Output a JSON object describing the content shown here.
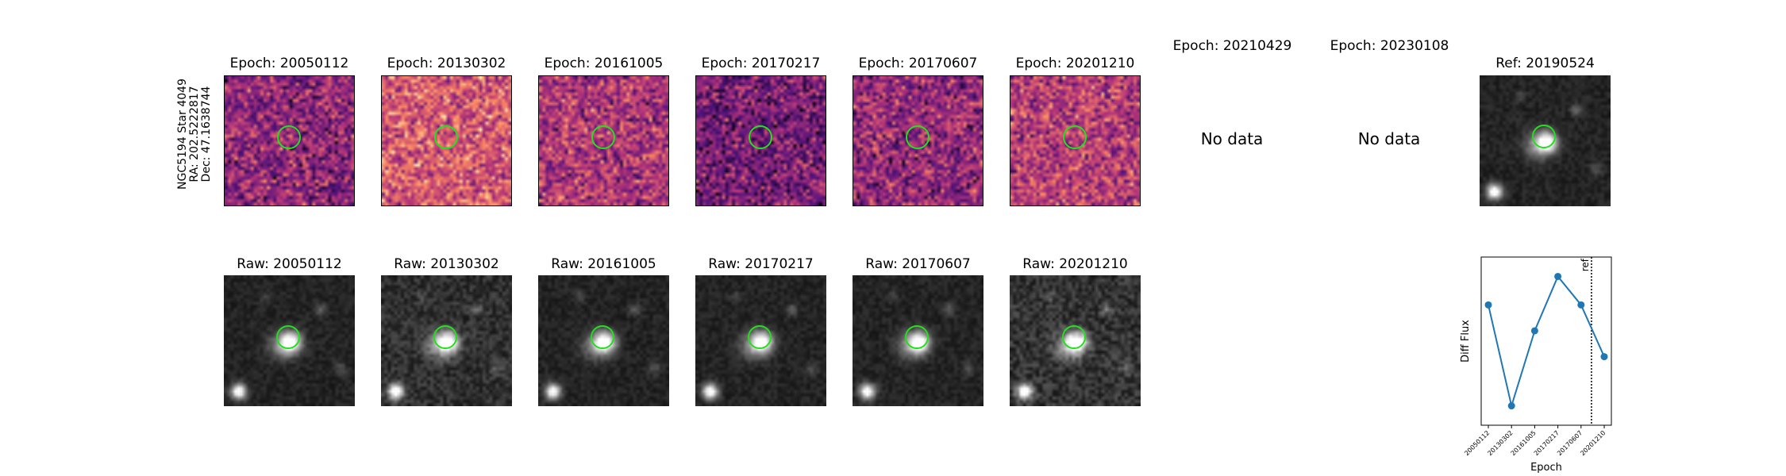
{
  "star": {
    "line1": "NGC5194 Star 4049",
    "line2": "RA: 202.5222817",
    "line3": "Dec: 47.1638744"
  },
  "diff_titles": [
    "Epoch: 20050112",
    "Epoch: 20130302",
    "Epoch: 20161005",
    "Epoch: 20170217",
    "Epoch: 20170607",
    "Epoch: 20201210",
    "Epoch: 20210429",
    "Epoch: 20230108"
  ],
  "no_data_label": "No data",
  "ref_title": "Ref: 20190524",
  "raw_titles": [
    "Raw: 20050112",
    "Raw: 20130302",
    "Raw: 20161005",
    "Raw: 20170217",
    "Raw: 20170607",
    "Raw: 20201210"
  ],
  "colors": {
    "aperture": "#22e01c",
    "series": "#1f77b4"
  },
  "chart_data": {
    "type": "line",
    "xlabel": "Epoch",
    "ylabel": "Diff Flux",
    "categories": [
      "20050112",
      "20130302",
      "20161005",
      "20170217",
      "20170607",
      "20201210"
    ],
    "values": [
      0.78,
      0.0,
      0.58,
      1.0,
      0.78,
      0.38
    ],
    "ref_marker": {
      "label": "ref",
      "position": 4.45
    },
    "ylim": [
      -0.15,
      1.15
    ],
    "grid": false
  }
}
